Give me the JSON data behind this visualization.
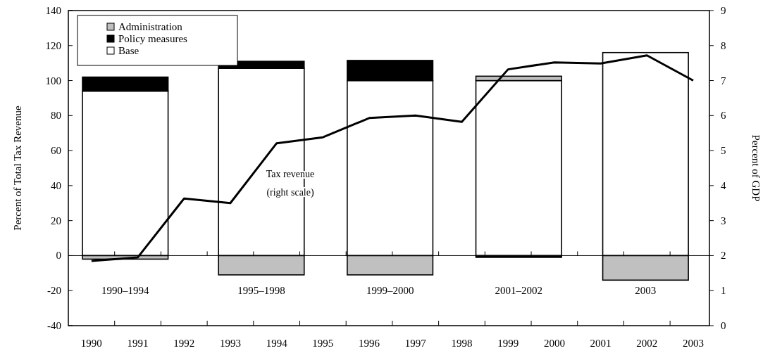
{
  "chart_data": {
    "type": "bar",
    "stacked": true,
    "xlim": [
      1989.5,
      2003.35
    ],
    "xticks": [
      1990,
      1991,
      1992,
      1993,
      1994,
      1995,
      1996,
      1997,
      1998,
      1999,
      2000,
      2001,
      2002,
      2003
    ],
    "series": [
      {
        "name": "Base",
        "color": "#ffffff",
        "x": [
          1990.73,
          1993.67,
          1996.45,
          1999.23,
          2001.97
        ],
        "values": [
          94,
          107,
          100,
          100,
          116
        ]
      },
      {
        "name": "Policy measures",
        "color": "#000000",
        "x": [
          1990.73,
          1993.67,
          1996.45,
          1999.23,
          2001.97
        ],
        "values": [
          8,
          4,
          11.5,
          -1,
          0
        ]
      },
      {
        "name": "Administration",
        "color": "#c0c0c0",
        "x": [
          1990.73,
          1993.67,
          1996.45,
          1999.23,
          2001.97
        ],
        "values": [
          -2,
          -11,
          -11,
          2.5,
          -14
        ]
      },
      {
        "type": "line",
        "axis": "y2",
        "color": "#000000",
        "x": [
          1990,
          1991,
          1992,
          1993,
          1994,
          1995,
          1996,
          1997,
          1998,
          1999,
          2000,
          2001,
          2002,
          2003
        ],
        "values": [
          1.85,
          1.95,
          3.63,
          3.5,
          5.21,
          5.38,
          5.93,
          6.0,
          5.82,
          7.32,
          7.52,
          7.49,
          7.72,
          7.0
        ]
      }
    ],
    "ylim": [
      -40,
      140
    ],
    "yticks": [
      -40,
      -20,
      0,
      20,
      40,
      60,
      80,
      100,
      120,
      140
    ],
    "y2lim": [
      0,
      9
    ],
    "y2ticks": [
      0,
      1,
      2,
      3,
      4,
      5,
      6,
      7,
      8,
      9
    ],
    "ylabel": "Percent of Total Tax Revenue",
    "y2label": "Percent of GDP",
    "annotations": [
      "1990–1994",
      "1995–1998",
      "1999–2000",
      "2001–2002",
      "2003",
      "Tax revenue\n(right scale)"
    ],
    "ref_lines": [
      {
        "axis": "y",
        "value": 0,
        "color": "#000000"
      }
    ],
    "legend": "top left",
    "grid": false,
    "line_style": "solid",
    "marker": "none"
  }
}
